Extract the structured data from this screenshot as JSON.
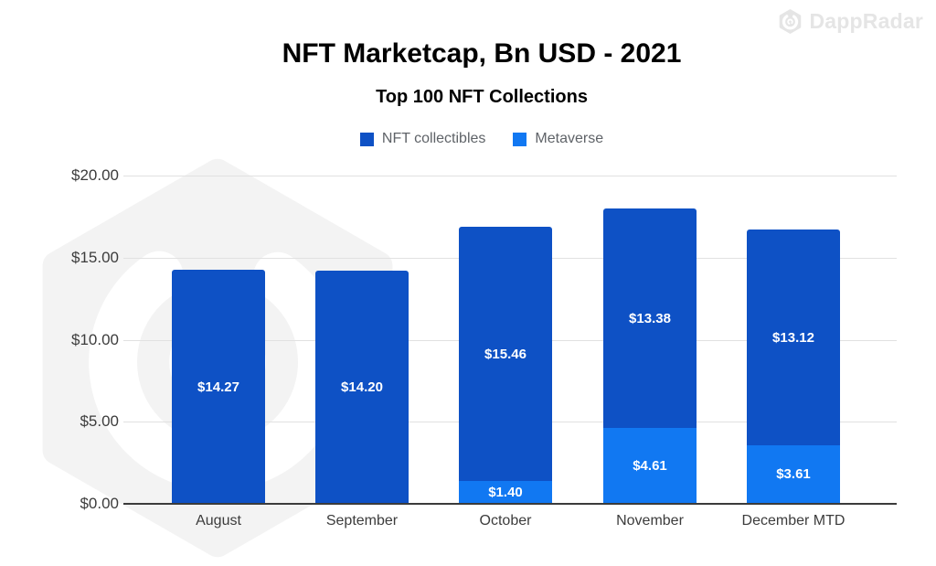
{
  "brand": {
    "name": "DappRadar"
  },
  "colors": {
    "series_dark": "#0e51c5",
    "series_light": "#1178f2",
    "grid": "#e1e1e1",
    "axis": "#3b3b3b",
    "tick_text": "#3c3c3c",
    "legend_text": "#5f6368",
    "value_label": "#ffffff",
    "watermark": "#f3f3f3",
    "logo": "#e5e5e5"
  },
  "chart_data": {
    "type": "bar",
    "stacked": true,
    "title": "NFT Marketcap, Bn USD - 2021",
    "subtitle": "Top 100 NFT Collections",
    "xlabel": "",
    "ylabel": "",
    "ylim": [
      0,
      20
    ],
    "grid": true,
    "legend_position": "top",
    "categories": [
      "August",
      "September",
      "October",
      "November",
      "December MTD"
    ],
    "yticks": [
      "$0.00",
      "$5.00",
      "$10.00",
      "$15.00",
      "$20.00"
    ],
    "series": [
      {
        "name": "NFT collectibles",
        "color": "#0e51c5",
        "stack_order": "top",
        "values": [
          14.27,
          14.2,
          15.46,
          13.38,
          13.12
        ],
        "labels": [
          "$14.27",
          "$14.20",
          "$15.46",
          "$13.38",
          "$13.12"
        ]
      },
      {
        "name": "Metaverse",
        "color": "#1178f2",
        "stack_order": "bottom",
        "values": [
          0,
          0,
          1.4,
          4.61,
          3.61
        ],
        "labels": [
          "",
          "",
          "$1.40",
          "$4.61",
          "$3.61"
        ]
      }
    ]
  }
}
